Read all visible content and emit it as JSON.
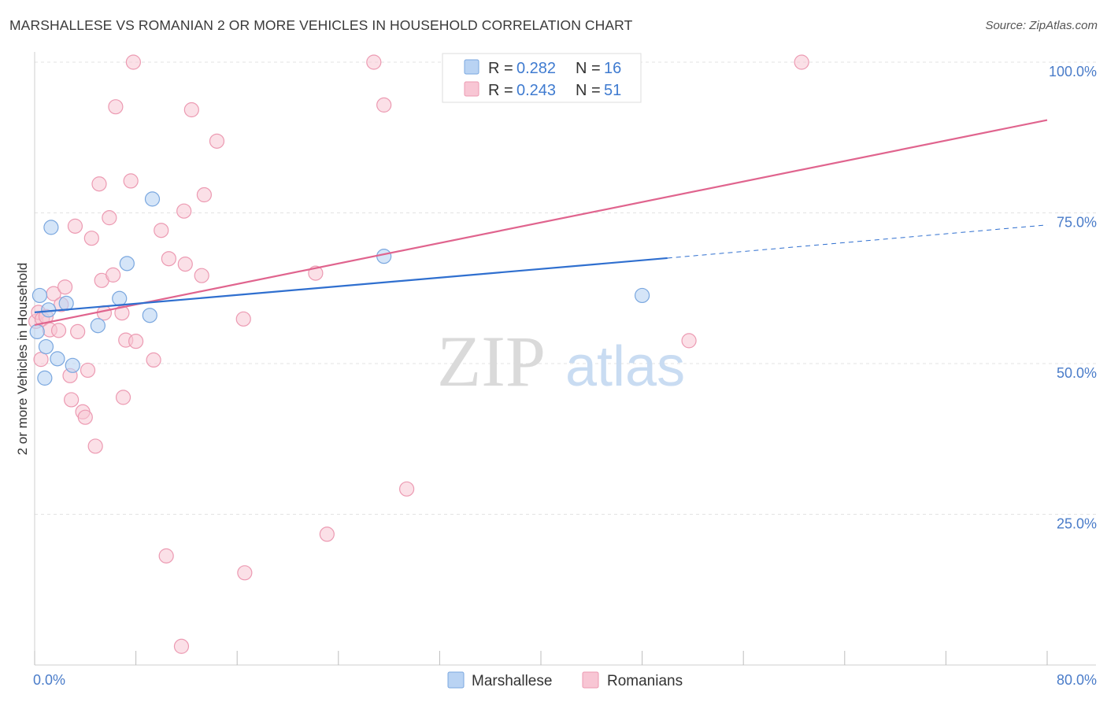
{
  "title": "MARSHALLESE VS ROMANIAN 2 OR MORE VEHICLES IN HOUSEHOLD CORRELATION CHART",
  "source": "Source: ZipAtlas.com",
  "watermark": {
    "zip": "ZIP",
    "atlas": "atlas"
  },
  "colors": {
    "blue_fill": "#b9d3f3",
    "blue_stroke": "#7aa7df",
    "blue_line": "#2f6fcf",
    "pink_fill": "#f8c6d4",
    "pink_stroke": "#ec9ab2",
    "pink_line": "#e0648e",
    "tick_label": "#4a7cc9"
  },
  "legend": {
    "r_label": "R =",
    "n_label": "N =",
    "series": [
      {
        "r": "0.282",
        "n": "16"
      },
      {
        "r": "0.243",
        "n": "51"
      }
    ]
  },
  "chart_data": {
    "type": "scatter",
    "title": "MARSHALLESE VS ROMANIAN 2 OR MORE VEHICLES IN HOUSEHOLD CORRELATION CHART",
    "xlabel": "",
    "ylabel": "2 or more Vehicles in Household",
    "xlim": [
      0,
      80
    ],
    "ylim": [
      0,
      103
    ],
    "x_tick_labels": [
      "0.0%",
      "80.0%"
    ],
    "y_ticks": [
      25,
      50,
      75,
      100
    ],
    "y_tick_labels": [
      "25.0%",
      "50.0%",
      "75.0%",
      "100.0%"
    ],
    "grid": true,
    "legend_position": "top-center",
    "series": [
      {
        "name": "Marshallese",
        "points": [
          [
            0.2,
            55.3
          ],
          [
            0.4,
            61.3
          ],
          [
            0.8,
            47.6
          ],
          [
            0.9,
            52.8
          ],
          [
            1.1,
            58.9
          ],
          [
            1.3,
            72.6
          ],
          [
            1.8,
            50.8
          ],
          [
            2.5,
            60.0
          ],
          [
            3.0,
            49.7
          ],
          [
            5.0,
            56.3
          ],
          [
            6.7,
            60.8
          ],
          [
            7.3,
            66.6
          ],
          [
            9.1,
            58.0
          ],
          [
            9.3,
            77.3
          ],
          [
            27.6,
            67.8
          ],
          [
            48.0,
            61.3
          ]
        ],
        "trend": {
          "x0": 0,
          "y0": 58.5,
          "x1": 50,
          "y1": 67.5,
          "dash_to_x": 80,
          "dash_to_y": 73.0
        }
      },
      {
        "name": "Romanians",
        "points": [
          [
            0.1,
            57.0
          ],
          [
            0.3,
            58.5
          ],
          [
            0.5,
            50.7
          ],
          [
            0.6,
            57.4
          ],
          [
            0.9,
            57.8
          ],
          [
            1.2,
            55.6
          ],
          [
            1.5,
            61.6
          ],
          [
            1.9,
            55.5
          ],
          [
            2.1,
            59.8
          ],
          [
            2.4,
            62.7
          ],
          [
            2.8,
            48.0
          ],
          [
            2.9,
            44.0
          ],
          [
            3.2,
            72.8
          ],
          [
            3.4,
            55.3
          ],
          [
            3.8,
            42.0
          ],
          [
            4.0,
            41.1
          ],
          [
            4.2,
            48.9
          ],
          [
            4.5,
            70.8
          ],
          [
            4.8,
            36.3
          ],
          [
            5.1,
            79.8
          ],
          [
            5.3,
            63.8
          ],
          [
            5.5,
            58.4
          ],
          [
            5.9,
            74.2
          ],
          [
            6.2,
            64.7
          ],
          [
            6.4,
            92.6
          ],
          [
            6.9,
            58.4
          ],
          [
            7.0,
            44.4
          ],
          [
            7.2,
            53.9
          ],
          [
            7.6,
            80.3
          ],
          [
            7.8,
            100.0
          ],
          [
            8.0,
            53.7
          ],
          [
            9.4,
            50.6
          ],
          [
            10.0,
            72.1
          ],
          [
            10.4,
            18.1
          ],
          [
            10.6,
            67.4
          ],
          [
            11.6,
            3.1
          ],
          [
            11.8,
            75.3
          ],
          [
            11.9,
            66.5
          ],
          [
            12.4,
            92.1
          ],
          [
            13.2,
            64.6
          ],
          [
            13.4,
            78.0
          ],
          [
            14.4,
            86.9
          ],
          [
            16.5,
            57.4
          ],
          [
            16.6,
            15.3
          ],
          [
            22.2,
            65.0
          ],
          [
            23.1,
            21.7
          ],
          [
            26.8,
            100.0
          ],
          [
            27.6,
            92.9
          ],
          [
            29.4,
            29.2
          ],
          [
            51.7,
            53.8
          ],
          [
            60.6,
            100.0
          ]
        ],
        "trend": {
          "x0": 0,
          "y0": 56.4,
          "x1": 80,
          "y1": 90.4
        }
      }
    ]
  }
}
